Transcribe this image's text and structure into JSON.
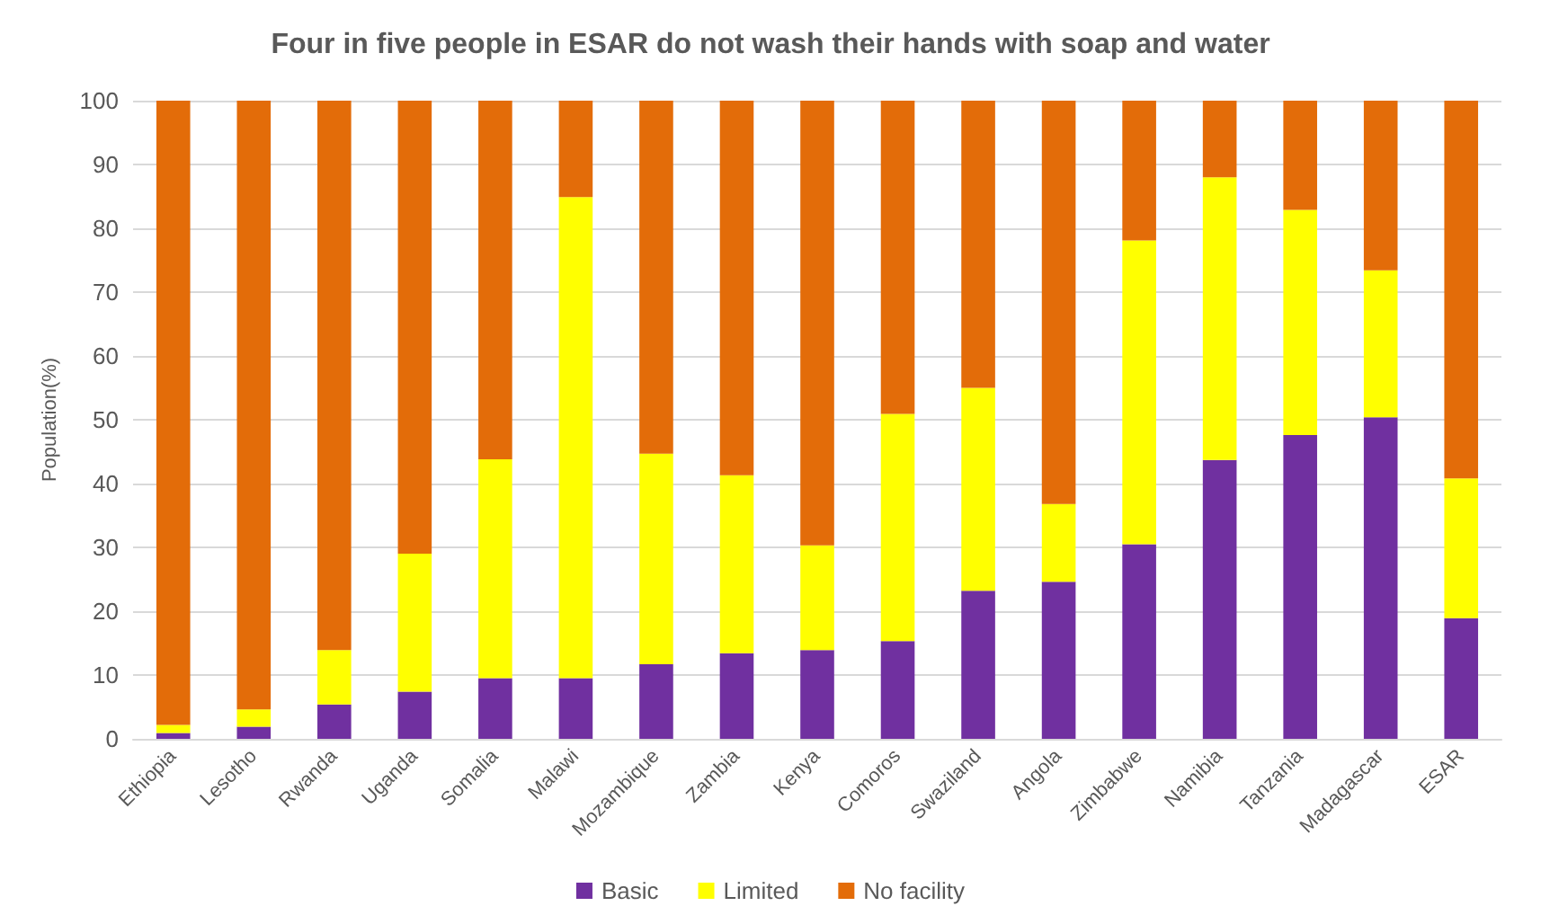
{
  "chart_data": {
    "type": "bar",
    "title": "Four in five people in ESAR do not wash their hands with soap and water",
    "ylabel": "Population(%)",
    "categories": [
      "Ethiopia",
      "Lesotho",
      "Rwanda",
      "Uganda",
      "Somalia",
      "Malawi",
      "Mozambique",
      "Zambia",
      "Kenya",
      "Comoros",
      "Swaziland",
      "Angola",
      "Zimbabwe",
      "Namibia",
      "Tanzania",
      "Madagascar",
      "ESAR"
    ],
    "stacked": true,
    "series": [
      {
        "name": "Basic",
        "color": "#7030a0",
        "values": [
          0.9,
          1.9,
          5.4,
          7.4,
          9.5,
          9.5,
          11.7,
          13.4,
          13.9,
          15.3,
          23.2,
          24.6,
          30.5,
          43.7,
          47.6,
          50.4,
          18.9
        ]
      },
      {
        "name": "Limited",
        "color": "#ffff00",
        "values": [
          1.3,
          2.7,
          8.5,
          21.6,
          34.3,
          75.4,
          33,
          27.9,
          16.4,
          35.6,
          31.8,
          12.2,
          47.6,
          44.3,
          35.3,
          23,
          21.9
        ]
      },
      {
        "name": "No facility",
        "color": "#e36c09",
        "values": [
          97.8,
          95.4,
          86.1,
          71,
          56.2,
          15.1,
          55.3,
          58.7,
          69.7,
          49.1,
          45,
          63.2,
          21.9,
          12,
          17.1,
          26.6,
          59.2
        ]
      }
    ],
    "ylim": [
      0,
      100
    ],
    "yticks": [
      0,
      10,
      20,
      30,
      40,
      50,
      60,
      70,
      80,
      90,
      100
    ],
    "grid": "y",
    "legend": "bottom"
  }
}
